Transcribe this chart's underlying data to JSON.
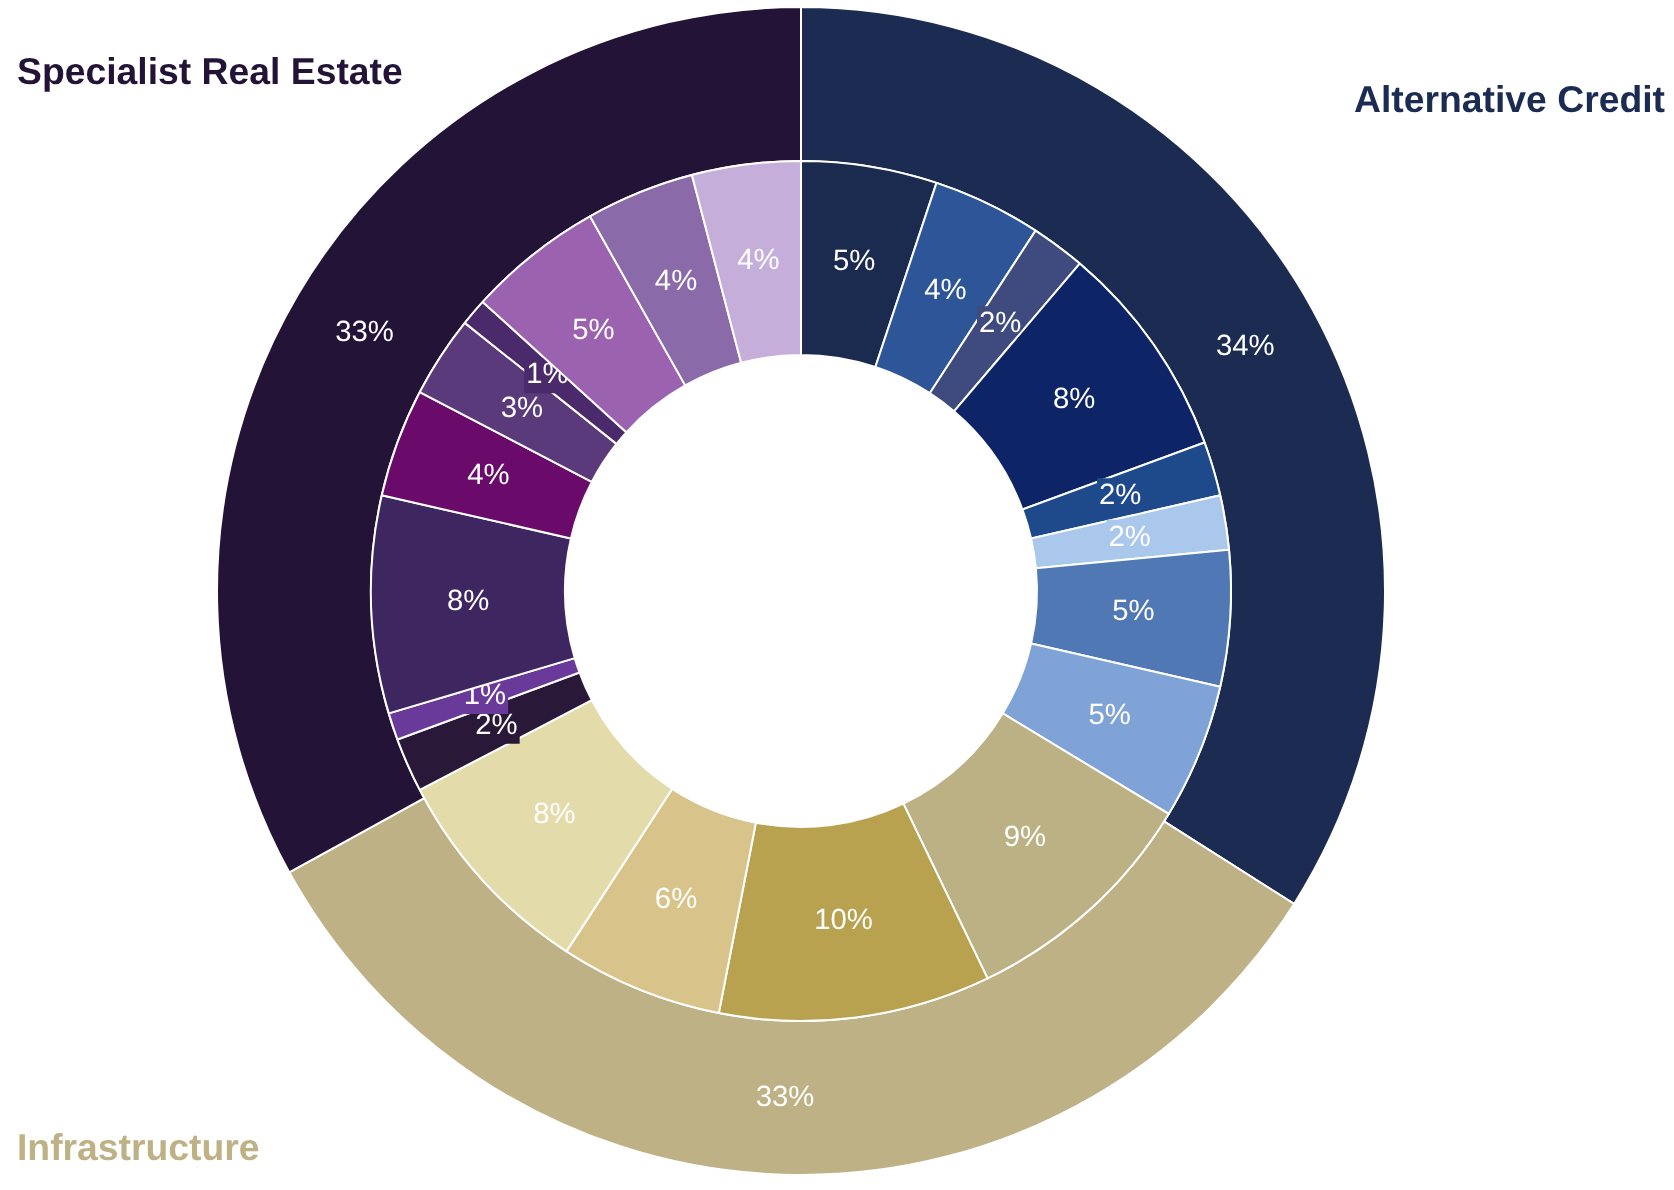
{
  "chart_data": {
    "type": "donut",
    "annotations": [
      "Alternative Credit",
      "Infrastructure",
      "Specialist Real Estate"
    ],
    "series": [
      {
        "values": [
          34,
          33,
          33
        ],
        "value_labels": [
          "34%",
          "33%",
          "33%"
        ],
        "colors": [
          "#1b2b52",
          "#bdb185",
          "#231337"
        ]
      },
      {
        "values": [
          5,
          4,
          2,
          8,
          2,
          2,
          5,
          5,
          9,
          10,
          6,
          8,
          2,
          1,
          8,
          4,
          3,
          1,
          5,
          4,
          4
        ],
        "value_labels": [
          "5%",
          "4%",
          "2%",
          "8%",
          "2%",
          "2%",
          "5%",
          "5%",
          "9%",
          "10%",
          "6%",
          "8%",
          "2%",
          "1%",
          "8%",
          "4%",
          "3%",
          "1%",
          "5%",
          "4%",
          "4%"
        ],
        "colors": [
          "#1b2a4f",
          "#2e5597",
          "#3f4a7e",
          "#0d2467",
          "#1e4a8c",
          "#a9c8ec",
          "#4f78b5",
          "#7fa3d6",
          "#bcb085",
          "#b8a250",
          "#d8c48a",
          "#e4dbab",
          "#2a1838",
          "#6a3a9a",
          "#3e2660",
          "#6a0a6a",
          "#5a3a7a",
          "#4a2a6a",
          "#9b62b0",
          "#8a6aa8",
          "#c6aedb"
        ]
      }
    ]
  }
}
